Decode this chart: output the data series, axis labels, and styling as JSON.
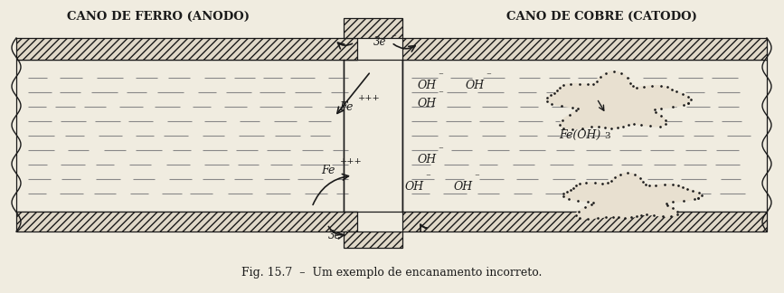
{
  "fig_width": 8.67,
  "fig_height": 3.24,
  "dpi": 100,
  "bg_color": "#f0ece0",
  "title_left": "CANO DE FERRO (ANODO)",
  "title_right": "CANO DE COBRE (CATODO)",
  "caption": "Fig. 15.7  –  Um exemplo de encanamento incorreto.",
  "line_color": "#1a1a1a",
  "hatch_color": "#333333",
  "pipe_wall_color": "#e0d8c8",
  "water_color": "#f0ece0"
}
